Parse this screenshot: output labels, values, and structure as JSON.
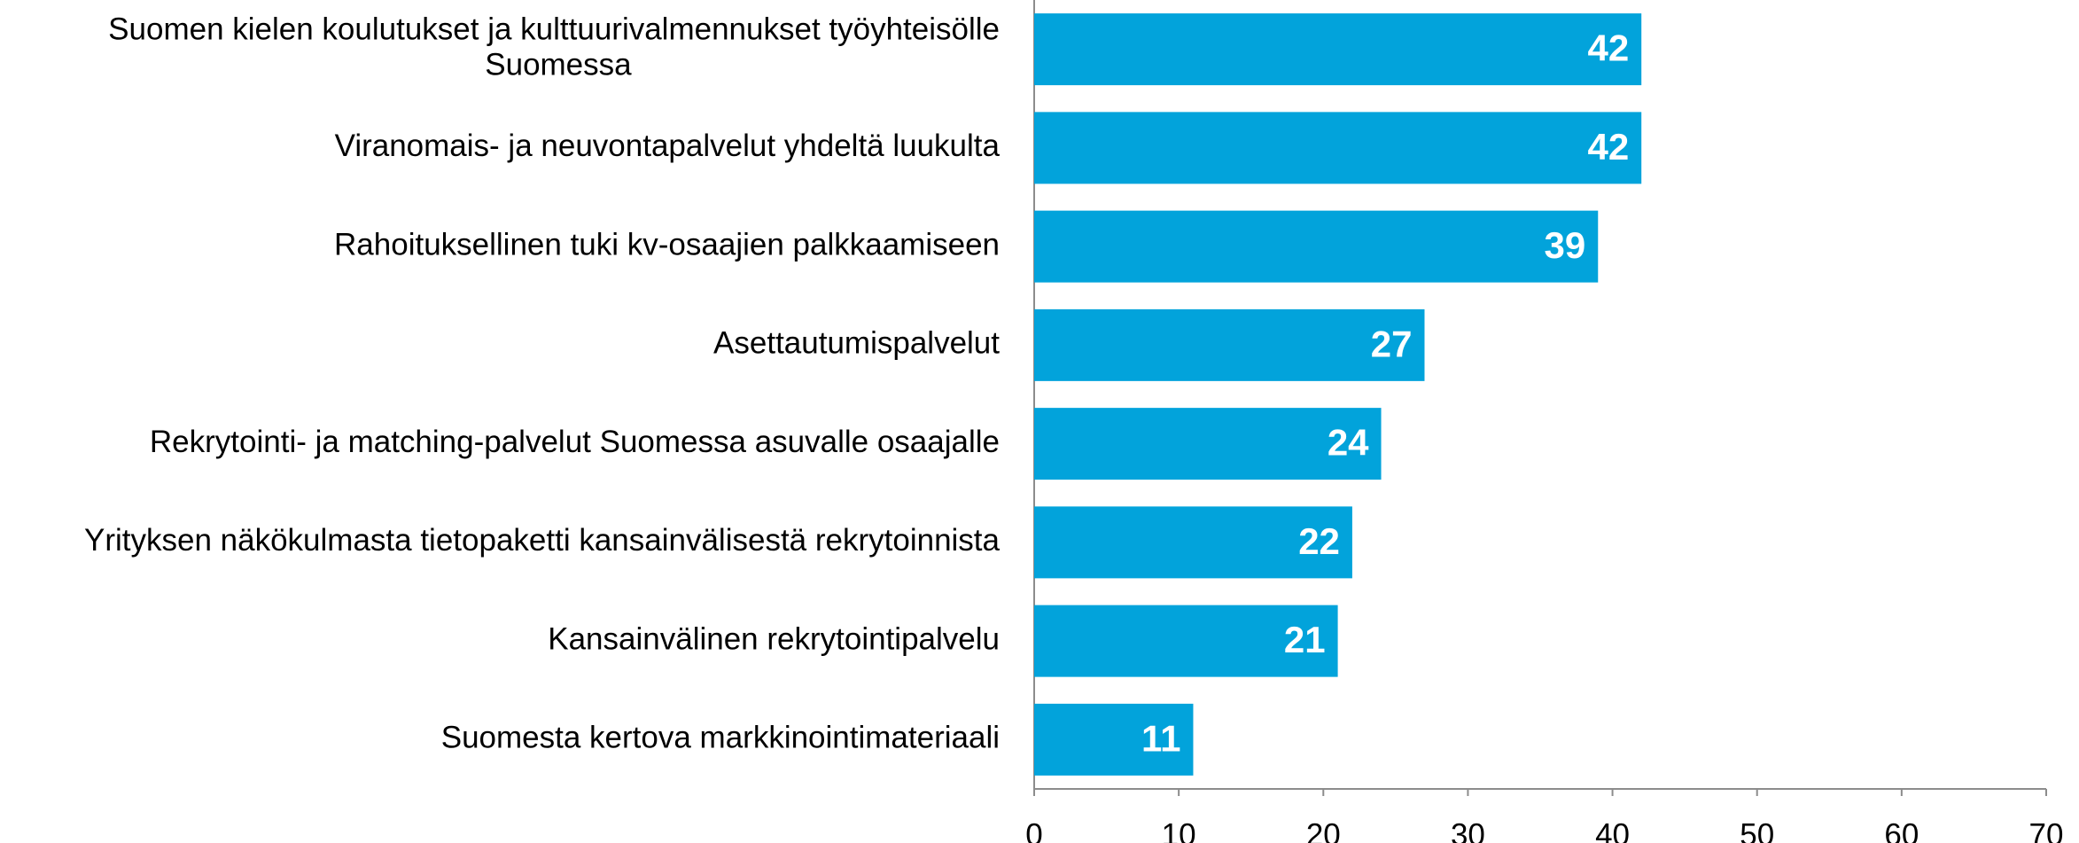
{
  "chart_data": {
    "type": "bar",
    "orientation": "horizontal",
    "categories": [
      "Suomen kielen koulutukset ja kulttuurivalmennukset työyhteisölle Suomessa",
      "Viranomais- ja neuvontapalvelut yhdeltä luukulta",
      "Rahoituksellinen tuki kv-osaajien palkkaamiseen",
      "Asettautumispalvelut",
      "Rekrytointi- ja matching-palvelut Suomessa asuvalle osaajalle",
      "Yrityksen näkökulmasta tietopaketti kansainvälisestä rekrytoinnista",
      "Kansainvälinen rekrytointipalvelu",
      "Suomesta kertova markkinointimateriaali"
    ],
    "values": [
      42,
      42,
      39,
      27,
      24,
      22,
      21,
      11
    ],
    "color": "#02a3db",
    "xlim": [
      0,
      70
    ],
    "xticks": [
      0,
      10,
      20,
      30,
      40,
      50,
      60,
      70
    ],
    "grid": false
  }
}
